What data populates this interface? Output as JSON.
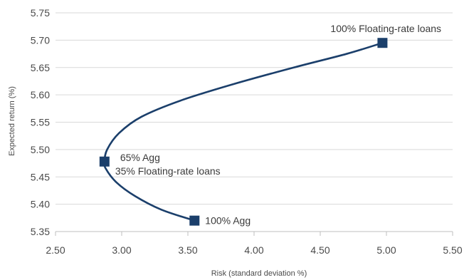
{
  "chart_data": {
    "type": "line",
    "xlabel": "Risk (standard deviation %)",
    "ylabel": "Expected return (%)",
    "xlim": [
      2.5,
      5.5
    ],
    "ylim": [
      5.35,
      5.75
    ],
    "x_ticks": [
      "2.50",
      "3.00",
      "3.50",
      "4.00",
      "4.50",
      "5.00",
      "5.50"
    ],
    "y_ticks": [
      "5.35",
      "5.40",
      "5.45",
      "5.50",
      "5.55",
      "5.60",
      "5.65",
      "5.70",
      "5.75"
    ],
    "grid": "horizontal",
    "legend": "none",
    "series": [
      {
        "color": "#1b3f6b",
        "points": [
          {
            "x": 3.55,
            "y": 5.37
          },
          {
            "x": 3.3,
            "y": 5.39
          },
          {
            "x": 3.1,
            "y": 5.415
          },
          {
            "x": 2.96,
            "y": 5.44
          },
          {
            "x": 2.88,
            "y": 5.465
          },
          {
            "x": 2.87,
            "y": 5.478
          },
          {
            "x": 2.89,
            "y": 5.5
          },
          {
            "x": 2.98,
            "y": 5.53
          },
          {
            "x": 3.15,
            "y": 5.56
          },
          {
            "x": 3.45,
            "y": 5.59
          },
          {
            "x": 3.85,
            "y": 5.62
          },
          {
            "x": 4.3,
            "y": 5.65
          },
          {
            "x": 4.7,
            "y": 5.675
          },
          {
            "x": 4.97,
            "y": 5.695
          }
        ]
      }
    ],
    "markers": [
      {
        "x": 4.97,
        "y": 5.695,
        "lines": [
          "100% Floating-rate loans"
        ],
        "position": "above"
      },
      {
        "x": 2.87,
        "y": 5.478,
        "lines": [
          "65% Agg",
          "35% Floating-rate loans"
        ],
        "position": "right"
      },
      {
        "x": 3.55,
        "y": 5.37,
        "lines": [
          "100% Agg"
        ],
        "position": "right"
      }
    ]
  }
}
